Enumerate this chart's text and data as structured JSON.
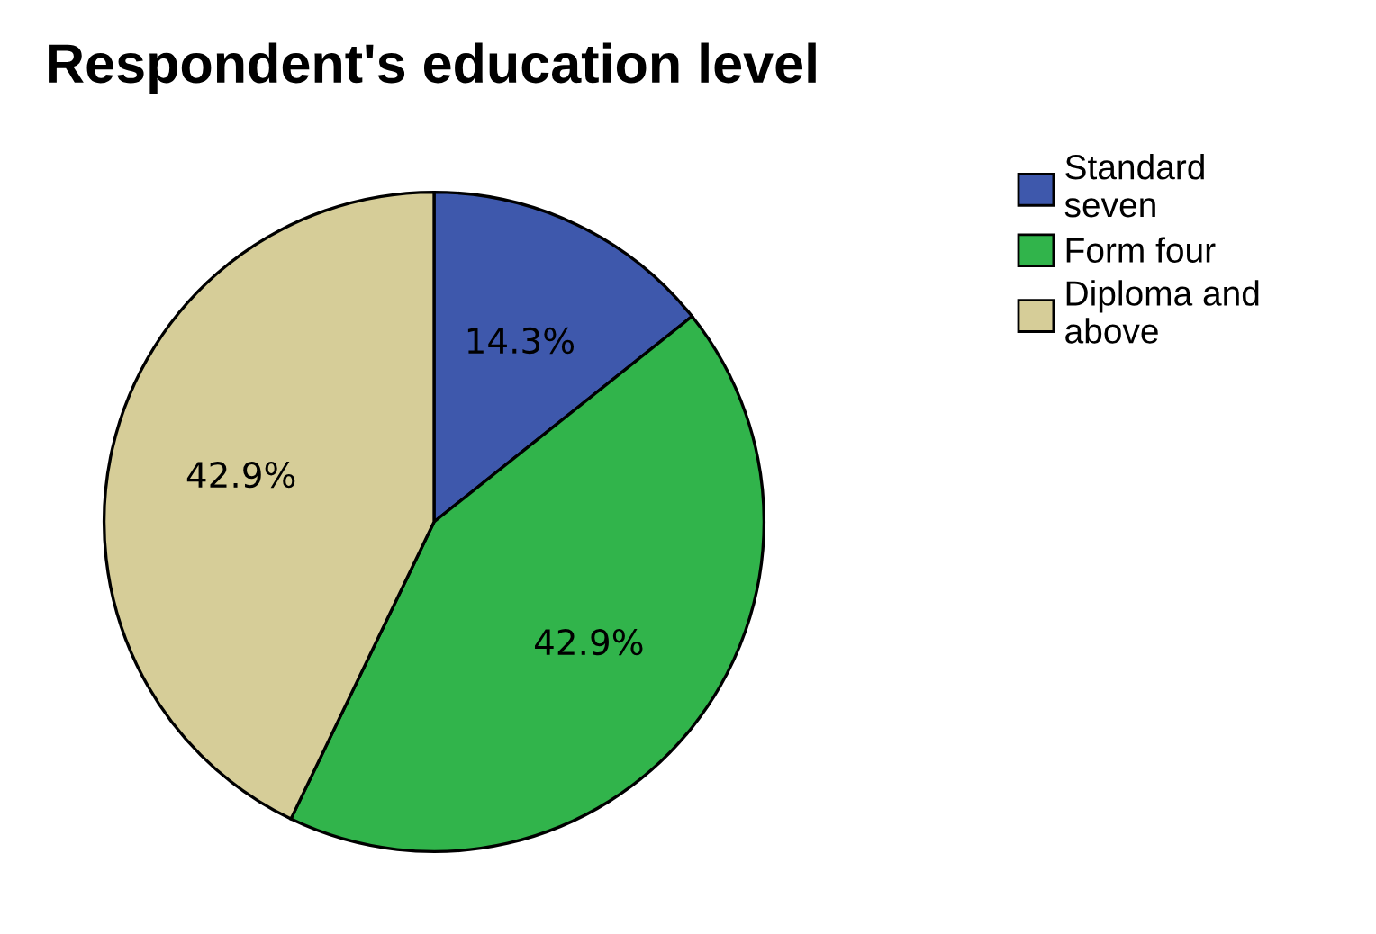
{
  "chart_data": {
    "type": "pie",
    "title": "Respondent's education level",
    "categories": [
      "Standard seven",
      "Form four",
      "Diploma and above"
    ],
    "values": [
      14.3,
      42.9,
      42.9
    ],
    "colors": [
      "#3e58ac",
      "#31b44b",
      "#d6cd98"
    ],
    "value_labels": [
      "14.3%",
      "42.9%",
      "42.9%"
    ],
    "legend": "top right"
  }
}
